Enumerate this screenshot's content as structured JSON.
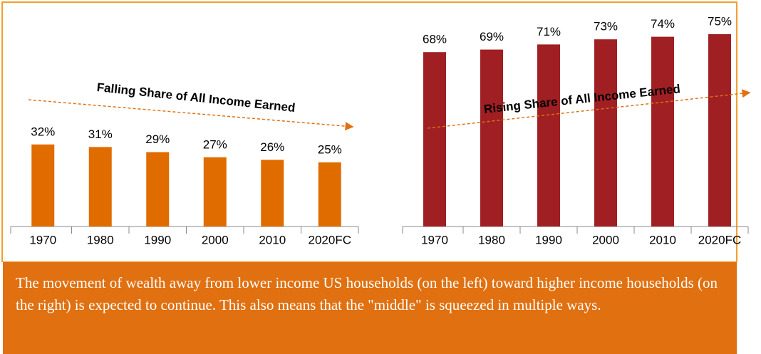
{
  "chart_data": [
    {
      "type": "bar",
      "categories": [
        "1970",
        "1980",
        "1990",
        "2000",
        "2010",
        "2020FC"
      ],
      "values": [
        32,
        31,
        29,
        27,
        26,
        25
      ],
      "value_labels": [
        "32%",
        "31%",
        "29%",
        "27%",
        "26%",
        "25%"
      ],
      "color": "#e06c00",
      "ylim": [
        0,
        80
      ],
      "annotation": "Falling Share of All Income Earned"
    },
    {
      "type": "bar",
      "categories": [
        "1970",
        "1980",
        "1990",
        "2000",
        "2010",
        "2020FC"
      ],
      "values": [
        68,
        69,
        71,
        73,
        74,
        75
      ],
      "value_labels": [
        "68%",
        "69%",
        "71%",
        "73%",
        "74%",
        "75%"
      ],
      "color": "#a01f23",
      "ylim": [
        0,
        80
      ],
      "annotation": "Rising Share of All Income Earned"
    }
  ],
  "caption": "The movement of wealth away from lower income US households (on the left) toward higher income households (on the right) is expected to continue. This also means that the \"middle\" is squeezed in multiple ways."
}
